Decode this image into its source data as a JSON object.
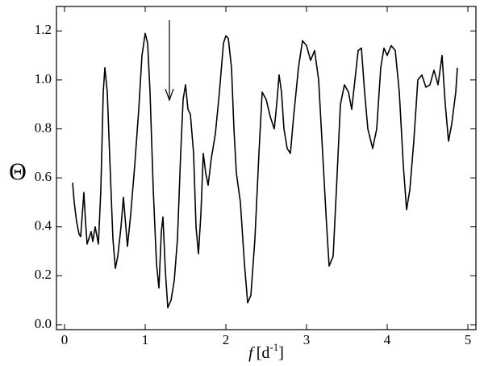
{
  "chart_data": {
    "type": "line",
    "xlabel": {
      "variable": "f",
      "unit": "[d",
      "exponent": "-1",
      "close": "]"
    },
    "ylabel": "Θ",
    "xlim": [
      -0.1,
      5.1
    ],
    "ylim": [
      -0.02,
      1.3
    ],
    "xticks": [
      0,
      1,
      2,
      3,
      4,
      5
    ],
    "yticks": [
      {
        "value": 0,
        "label": "0.0"
      },
      {
        "value": 0.2,
        "label": "0.2"
      },
      {
        "value": 0.4,
        "label": "0.4"
      },
      {
        "value": 0.6,
        "label": "0.6"
      },
      {
        "value": 0.8,
        "label": "0.8"
      },
      {
        "value": 1,
        "label": "1.0"
      },
      {
        "value": 1.2,
        "label": "1.2"
      }
    ],
    "series": [
      {
        "color": "#000000",
        "x": [
          0.1,
          0.12,
          0.15,
          0.18,
          0.2,
          0.22,
          0.24,
          0.26,
          0.28,
          0.3,
          0.33,
          0.35,
          0.38,
          0.42,
          0.45,
          0.48,
          0.5,
          0.53,
          0.57,
          0.6,
          0.63,
          0.66,
          0.7,
          0.73,
          0.76,
          0.78,
          0.82,
          0.87,
          0.92,
          0.96,
          1.0,
          1.03,
          1.06,
          1.1,
          1.14,
          1.17,
          1.2,
          1.22,
          1.25,
          1.28,
          1.32,
          1.36,
          1.4,
          1.44,
          1.47,
          1.5,
          1.53,
          1.56,
          1.6,
          1.63,
          1.66,
          1.69,
          1.72,
          1.75,
          1.78,
          1.82,
          1.87,
          1.92,
          1.97,
          2.0,
          2.03,
          2.07,
          2.1,
          2.13,
          2.18,
          2.23,
          2.27,
          2.31,
          2.36,
          2.41,
          2.45,
          2.5,
          2.55,
          2.6,
          2.63,
          2.66,
          2.69,
          2.72,
          2.76,
          2.8,
          2.84,
          2.9,
          2.95,
          3.0,
          3.05,
          3.1,
          3.15,
          3.2,
          3.25,
          3.28,
          3.33,
          3.37,
          3.42,
          3.47,
          3.52,
          3.56,
          3.6,
          3.64,
          3.68,
          3.72,
          3.76,
          3.82,
          3.87,
          3.92,
          3.96,
          4.0,
          4.05,
          4.1,
          4.15,
          4.2,
          4.24,
          4.28,
          4.33,
          4.38,
          4.43,
          4.48,
          4.53,
          4.58,
          4.63,
          4.68,
          4.72,
          4.76,
          4.8,
          4.85,
          4.87
        ],
        "values": [
          0.58,
          0.5,
          0.42,
          0.37,
          0.36,
          0.45,
          0.54,
          0.42,
          0.33,
          0.35,
          0.38,
          0.34,
          0.4,
          0.33,
          0.55,
          0.95,
          1.05,
          0.95,
          0.6,
          0.35,
          0.23,
          0.28,
          0.4,
          0.52,
          0.4,
          0.32,
          0.45,
          0.65,
          0.88,
          1.1,
          1.19,
          1.15,
          0.95,
          0.55,
          0.25,
          0.15,
          0.38,
          0.44,
          0.22,
          0.07,
          0.1,
          0.18,
          0.35,
          0.7,
          0.92,
          0.98,
          0.88,
          0.86,
          0.7,
          0.4,
          0.29,
          0.45,
          0.7,
          0.62,
          0.57,
          0.68,
          0.78,
          0.95,
          1.15,
          1.18,
          1.17,
          1.05,
          0.8,
          0.62,
          0.5,
          0.25,
          0.09,
          0.12,
          0.35,
          0.7,
          0.95,
          0.92,
          0.85,
          0.8,
          0.9,
          1.02,
          0.95,
          0.8,
          0.72,
          0.7,
          0.85,
          1.05,
          1.16,
          1.14,
          1.08,
          1.12,
          1.0,
          0.7,
          0.4,
          0.24,
          0.28,
          0.55,
          0.9,
          0.98,
          0.95,
          0.88,
          1.0,
          1.12,
          1.13,
          0.95,
          0.8,
          0.72,
          0.8,
          1.05,
          1.13,
          1.1,
          1.14,
          1.12,
          0.95,
          0.65,
          0.47,
          0.55,
          0.75,
          1.0,
          1.02,
          0.97,
          0.98,
          1.04,
          0.98,
          1.1,
          0.9,
          0.75,
          0.82,
          0.95,
          1.05
        ]
      }
    ]
  }
}
